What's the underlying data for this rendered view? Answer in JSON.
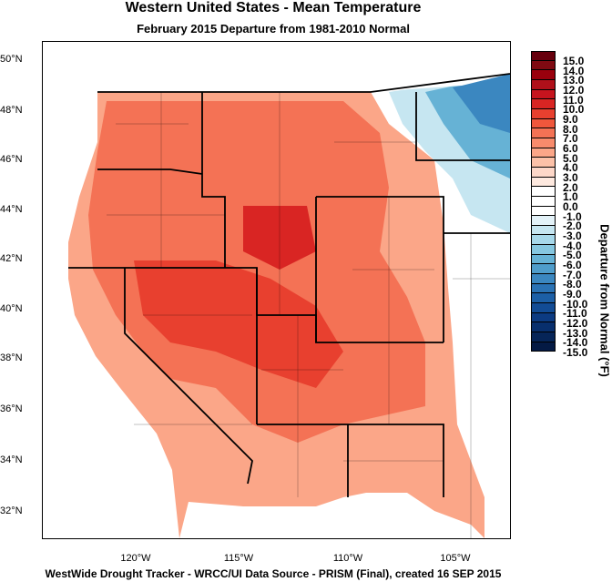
{
  "title": "Western United States - Mean Temperature",
  "subtitle": "February 2015  Departure from 1981-2010 Normal",
  "footer": "WestWide Drought Tracker - WRCC/UI  Data Source - PRISM (Final), created 16 SEP 2015",
  "lat_labels": [
    "50°N",
    "48°N",
    "46°N",
    "44°N",
    "42°N",
    "40°N",
    "38°N",
    "36°N",
    "34°N",
    "32°N"
  ],
  "lon_labels": [
    "120°W",
    "115°W",
    "110°W",
    "105°W"
  ],
  "colorbar": {
    "title": "Departure from Normal (°F)",
    "labels": [
      "15.0",
      "14.0",
      "13.0",
      "12.0",
      "11.0",
      "10.0",
      "9.0",
      "8.0",
      "7.0",
      "6.0",
      "5.0",
      "4.0",
      "3.0",
      "2.0",
      "1.0",
      "0.0",
      "-1.0",
      "-2.0",
      "-3.0",
      "-4.0",
      "-5.0",
      "-6.0",
      "-7.0",
      "-8.0",
      "-9.0",
      "-10.0",
      "-11.0",
      "-12.0",
      "-13.0",
      "-14.0",
      "-15.0"
    ],
    "colors": [
      "#67000d",
      "#7f0a12",
      "#99000d",
      "#b0101a",
      "#c6141e",
      "#d92523",
      "#e8402f",
      "#f0573c",
      "#f47255",
      "#f88b6c",
      "#fba688",
      "#fcc1a8",
      "#fdd7c8",
      "#fee9df",
      "#ffffff",
      "#ffffff",
      "#ffffff",
      "#e3f2f8",
      "#c6e6f1",
      "#a7d8ea",
      "#86c7e0",
      "#66b2d5",
      "#4f9dcb",
      "#3b87c0",
      "#2a72b4",
      "#1c5fa6",
      "#124c95",
      "#0c3b82",
      "#082f6d",
      "#062558",
      "#041a44"
    ]
  }
}
